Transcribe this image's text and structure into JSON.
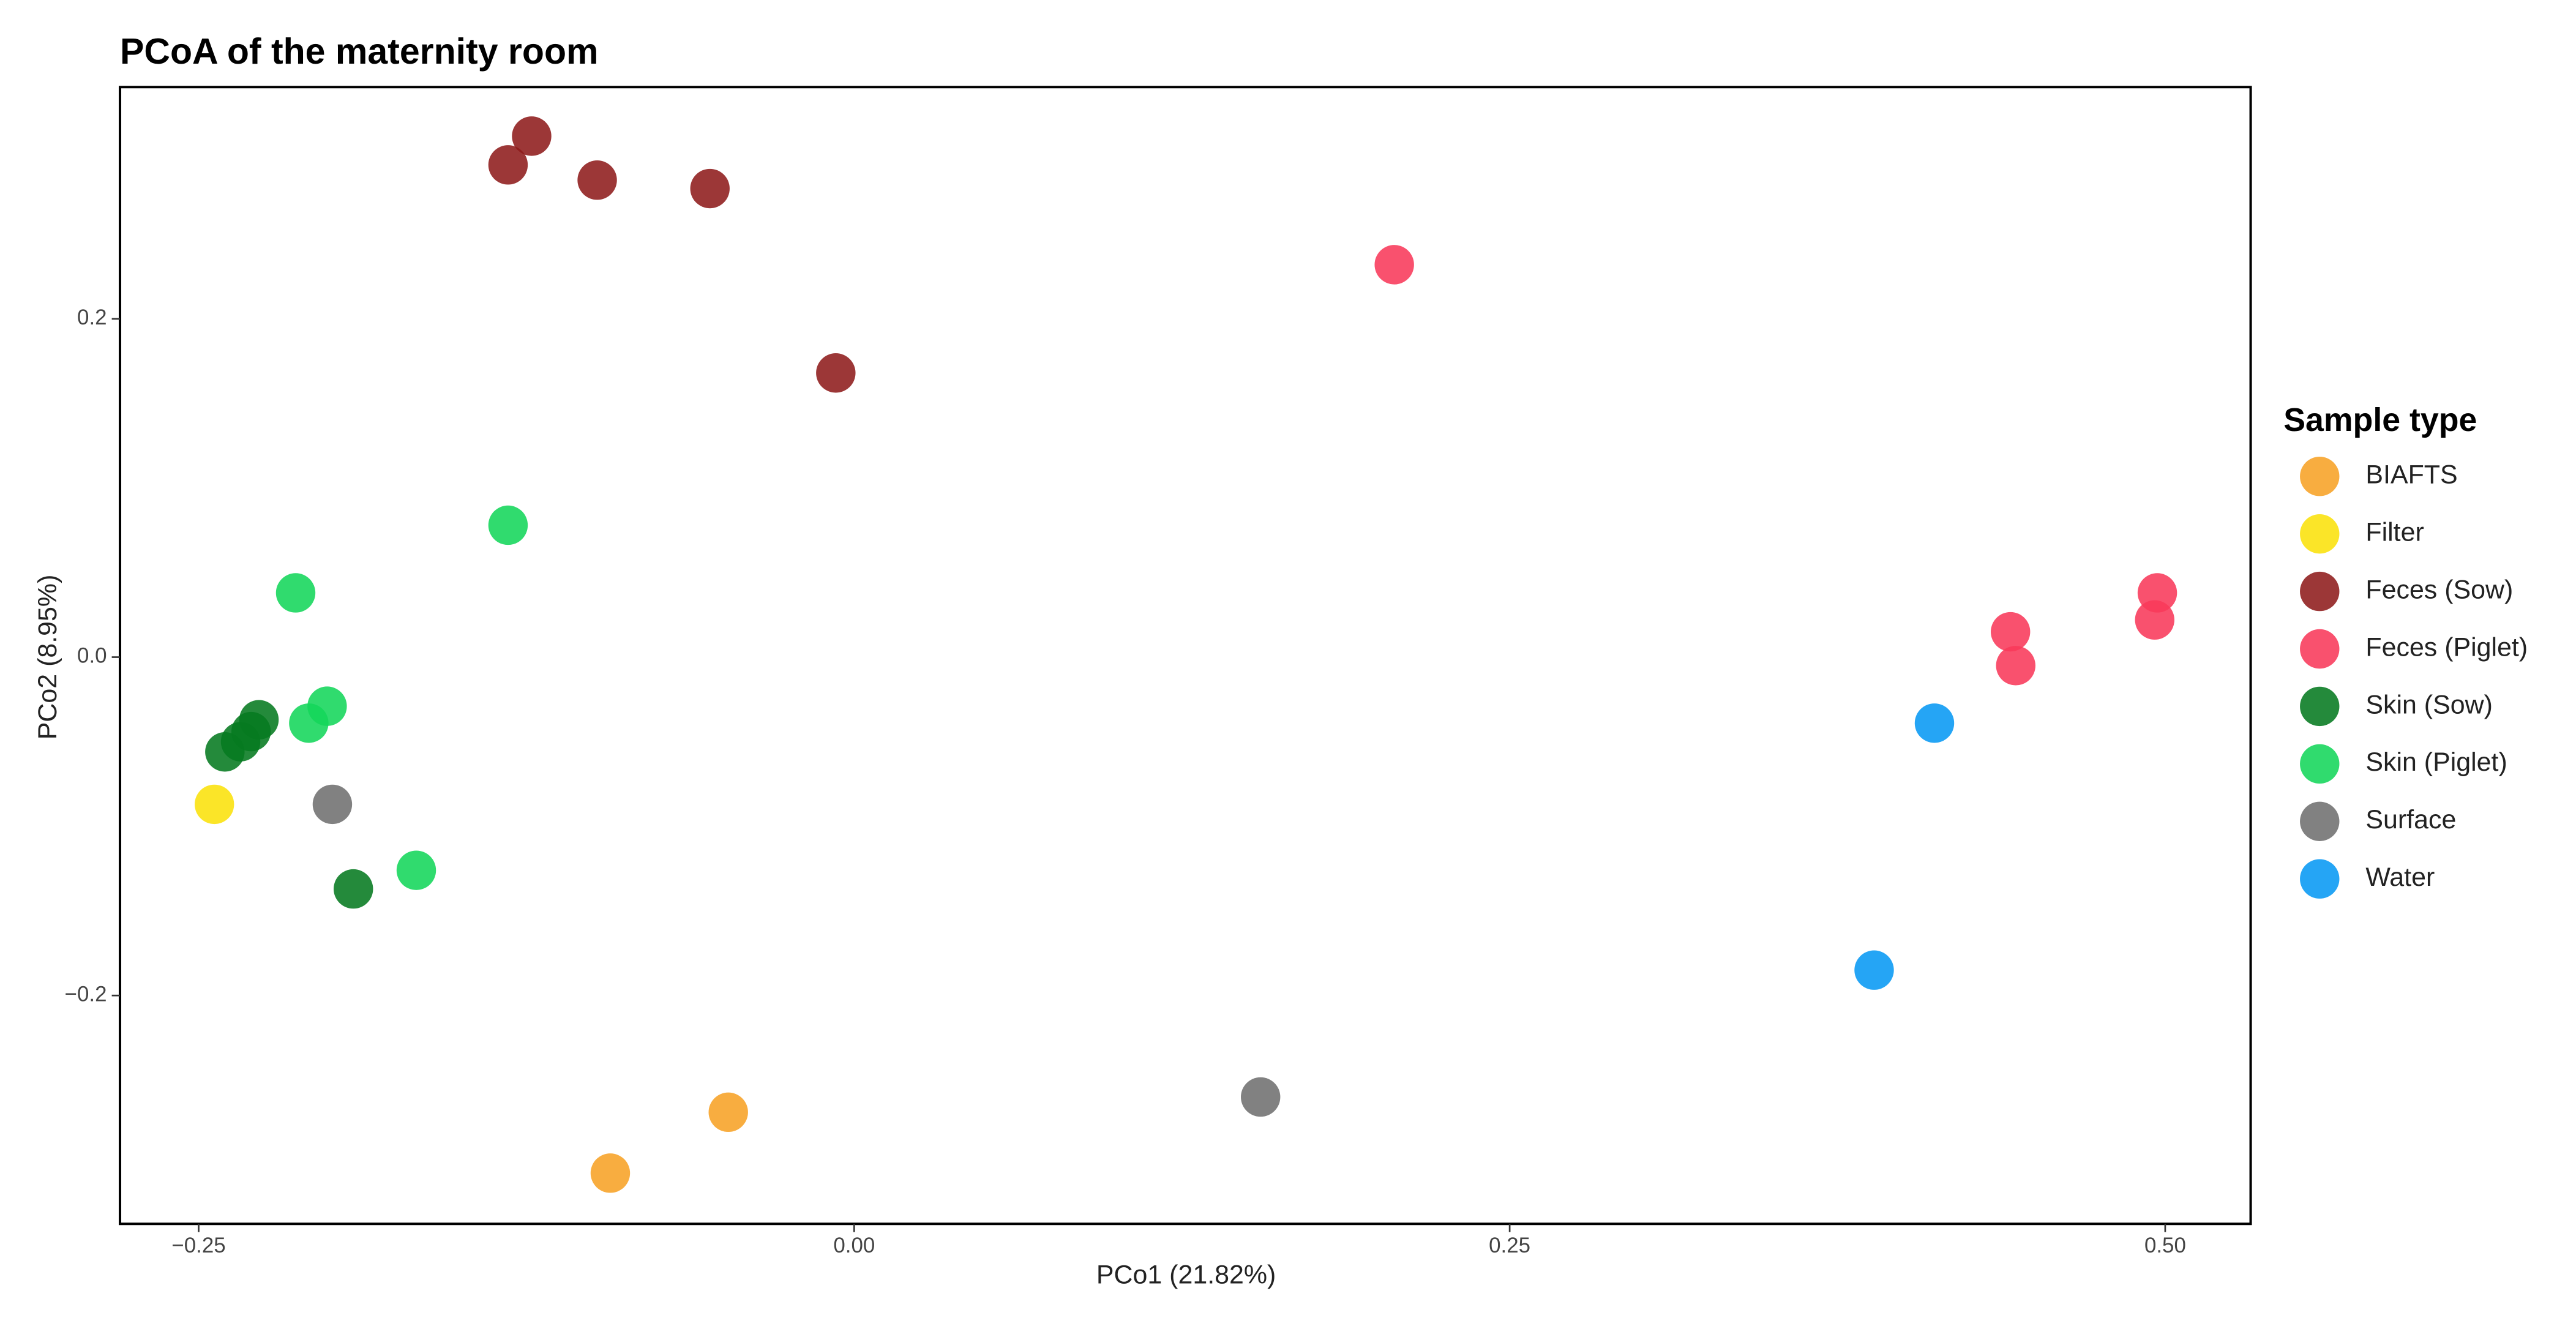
{
  "chart_data": {
    "type": "scatter",
    "title": "PCoA of the maternity room",
    "x_label": "PCo1 (21.82%)",
    "y_label": "PCo2 (8.95%)",
    "legend_title": "Sample type",
    "legend_position": "right",
    "xlim": [
      -0.28,
      0.5326
    ],
    "ylim": [
      -0.335,
      0.337
    ],
    "xticks": [
      {
        "value": -0.25,
        "label": "−0.25"
      },
      {
        "value": 0,
        "label": "0.00"
      },
      {
        "value": 0.25,
        "label": "0.25"
      },
      {
        "value": 0.5,
        "label": "0.50"
      }
    ],
    "yticks": [
      {
        "value": -0.2,
        "label": "−0.2"
      },
      {
        "value": 0,
        "label": "0.0"
      },
      0.2
    ],
    "series": [
      {
        "name": "BIAFTS",
        "color": "#f7a226",
        "x": [
          -0.093,
          -0.048
        ],
        "y": [
          -0.305,
          -0.269
        ]
      },
      {
        "name": "Filter",
        "color": "#fbe10a",
        "x": [
          -0.244
        ],
        "y": [
          -0.087
        ]
      },
      {
        "name": "Feces (Sow)",
        "color": "#8e1b1b",
        "x": [
          -0.132,
          -0.123,
          -0.098,
          -0.055,
          -0.007
        ],
        "y": [
          0.291,
          0.308,
          0.282,
          0.277,
          0.168
        ]
      },
      {
        "name": "Feces (Piglet)",
        "color": "#f8395a",
        "x": [
          0.206,
          0.441,
          0.443,
          0.497,
          0.496
        ],
        "y": [
          0.232,
          0.015,
          -0.005,
          0.038,
          0.022
        ]
      },
      {
        "name": "Skin (Sow)",
        "color": "#067a20",
        "x": [
          -0.24,
          -0.234,
          -0.23,
          -0.227,
          -0.191
        ],
        "y": [
          -0.056,
          -0.05,
          -0.044,
          -0.037,
          -0.137
        ]
      },
      {
        "name": "Skin (Piglet)",
        "color": "#13d65a",
        "x": [
          -0.132,
          -0.213,
          -0.201,
          -0.208,
          -0.167
        ],
        "y": [
          0.078,
          0.038,
          -0.029,
          -0.039,
          -0.126
        ]
      },
      {
        "name": "Surface",
        "color": "#6f6f6f",
        "x": [
          -0.199,
          0.155
        ],
        "y": [
          -0.087,
          -0.26
        ]
      },
      {
        "name": "Water",
        "color": "#0798f4",
        "x": [
          0.412,
          0.389
        ],
        "y": [
          -0.039,
          -0.185
        ]
      }
    ]
  }
}
